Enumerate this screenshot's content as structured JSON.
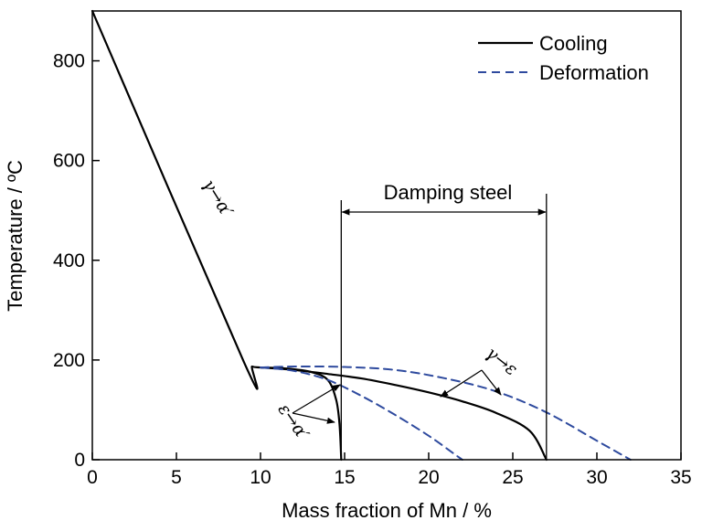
{
  "chart_data": {
    "type": "line",
    "title": "",
    "xlabel": "Mass fraction of Mn / %",
    "ylabel": "Temperature / ºC",
    "xlim": [
      0,
      35
    ],
    "ylim": [
      0,
      900
    ],
    "xticks": [
      0,
      5,
      10,
      15,
      20,
      25,
      30,
      35
    ],
    "yticks": [
      0,
      200,
      400,
      600,
      800
    ],
    "grid": false,
    "legend_position": "top-right",
    "series": [
      {
        "name": "Cooling",
        "style": "solid",
        "color": "#000000",
        "curves": [
          [
            [
              0,
              900
            ],
            [
              9,
              197
            ],
            [
              9.5,
              187
            ],
            [
              10,
              185
            ],
            [
              11.5,
              183
            ],
            [
              13,
              176
            ],
            [
              14,
              160
            ],
            [
              14.5,
              120
            ],
            [
              14.7,
              70
            ],
            [
              14.8,
              0
            ]
          ],
          [
            [
              10,
              185
            ],
            [
              12,
              180
            ],
            [
              14,
              172
            ],
            [
              16,
              163
            ],
            [
              18,
              150
            ],
            [
              20,
              135
            ],
            [
              22,
              117
            ],
            [
              24,
              94
            ],
            [
              26,
              58
            ],
            [
              27,
              0
            ]
          ]
        ]
      },
      {
        "name": "Deformation",
        "style": "dashed",
        "color": "#2e4a9e",
        "curves": [
          [
            [
              10,
              185
            ],
            [
              12,
              178
            ],
            [
              14,
              160
            ],
            [
              16,
              128
            ],
            [
              18,
              90
            ],
            [
              20,
              48
            ],
            [
              21.5,
              12
            ],
            [
              22,
              0
            ]
          ],
          [
            [
              10,
              185
            ],
            [
              12,
              187
            ],
            [
              15,
              186
            ],
            [
              18,
              180
            ],
            [
              21,
              163
            ],
            [
              24,
              137
            ],
            [
              27,
              95
            ],
            [
              30,
              38
            ],
            [
              32,
              0
            ]
          ]
        ]
      }
    ],
    "annotations": {
      "gamma_alpha": "γ→α′",
      "gamma_epsilon": "γ→ε",
      "epsilon_alpha": "ε→α′",
      "damping_region": {
        "label": "Damping steel",
        "x_start": 14.8,
        "x_end": 27
      }
    }
  }
}
